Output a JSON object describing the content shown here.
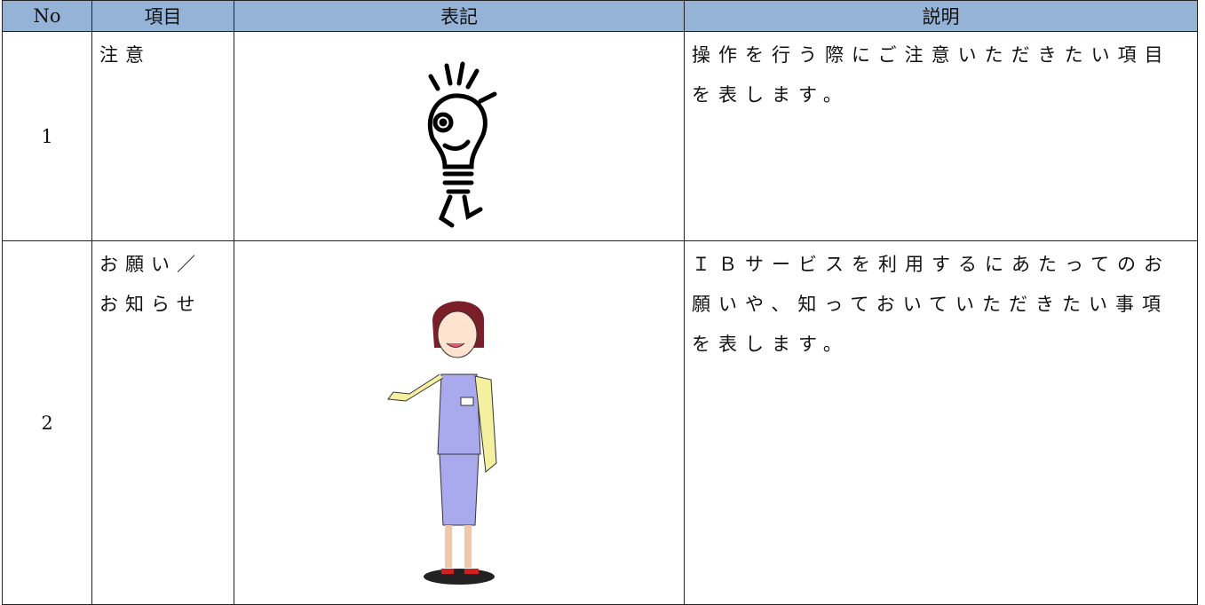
{
  "table": {
    "header": [
      "No",
      "項目",
      "表記",
      "説明"
    ],
    "rows": [
      {
        "no": "1",
        "item": [
          "注意"
        ],
        "desc": [
          "操作を行う際にご注意いただきたい項目",
          "を表します。"
        ]
      },
      {
        "no": "2",
        "item": [
          "お願い／",
          "お知らせ"
        ],
        "desc": [
          "ＩＢサービスを利用するにあたってのお",
          "願いや、知っておいていただきたい事項",
          "を表します。"
        ]
      }
    ]
  }
}
